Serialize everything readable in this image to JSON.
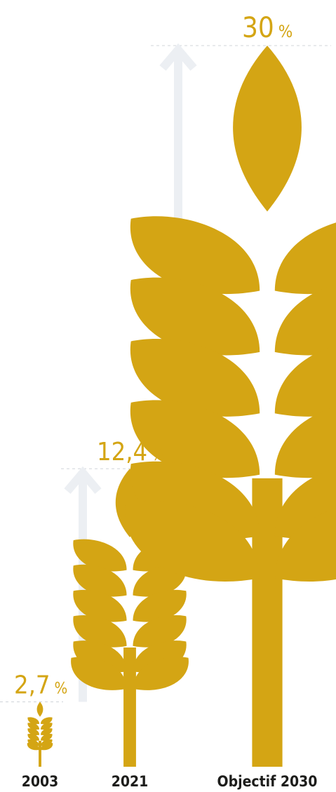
{
  "colors": {
    "wheat": "#D4A514",
    "arrow": "#ECEFF3",
    "guide": "#D0D4D9",
    "text": "#1D1D1B"
  },
  "icon": "wheat-ear-icon",
  "chart_data": {
    "type": "bar",
    "categories": [
      "2003",
      "2021",
      "Objectif 2030"
    ],
    "values": [
      2.7,
      12.4,
      30
    ],
    "value_labels": [
      "2,7 %",
      "12,4 %",
      "30 %"
    ],
    "title": "",
    "xlabel": "",
    "ylabel": "",
    "grid": false,
    "legend": "none"
  }
}
